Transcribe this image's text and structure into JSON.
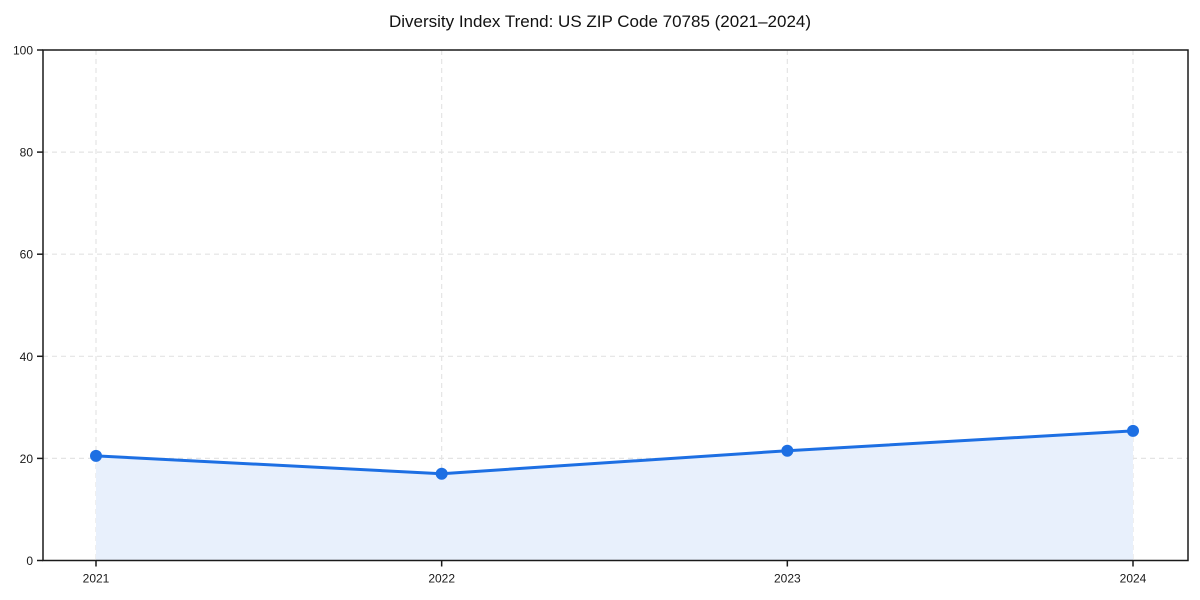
{
  "chart_data": {
    "type": "area",
    "title": "Diversity Index Trend: US ZIP Code 70785 (2021–2024)",
    "series_name": "Diversity Index",
    "x": [
      2021,
      2022,
      2023,
      2024
    ],
    "xtick_labels": [
      "2021",
      "2022",
      "2023",
      "2024"
    ],
    "values": [
      20.5,
      17.0,
      21.5,
      25.4
    ],
    "xlabel": "",
    "ylabel": "",
    "ylim": [
      0,
      100
    ],
    "yticks": [
      0,
      20,
      40,
      60,
      80,
      100
    ],
    "grid": true,
    "grid_style": "dashed",
    "legend_position": "none",
    "colors": {
      "line": "#1d6fe3",
      "marker": "#1d6fe3",
      "area_fill": "#e8f0fc",
      "gridline": "#e4e4e4",
      "axis": "#1a1a1a",
      "tick_label": "#1a1a1a",
      "background": "#ffffff"
    }
  }
}
